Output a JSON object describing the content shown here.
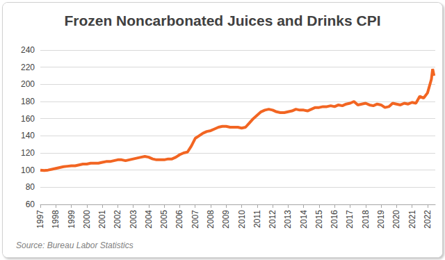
{
  "chart_data": {
    "type": "line",
    "title": "Frozen Noncarbonated Juices and Drinks CPI",
    "annotation": "Source: Bureau Labor Statistics",
    "color": "#f26522",
    "grid": true,
    "xlim": [
      1997,
      2022.5
    ],
    "xticks": [
      1997,
      1998,
      1999,
      2000,
      2001,
      2002,
      2003,
      2004,
      2005,
      2006,
      2007,
      2008,
      2009,
      2010,
      2011,
      2012,
      2013,
      2014,
      2015,
      2016,
      2017,
      2018,
      2019,
      2020,
      2021,
      2022
    ],
    "ylim": [
      60,
      240
    ],
    "yticks": [
      60,
      80,
      100,
      120,
      140,
      160,
      180,
      200,
      220,
      240
    ],
    "x": [
      1997,
      1997.25,
      1997.5,
      1997.75,
      1998,
      1998.25,
      1998.5,
      1998.75,
      1999,
      1999.25,
      1999.5,
      1999.75,
      2000,
      2000.25,
      2000.5,
      2000.75,
      2001,
      2001.25,
      2001.5,
      2001.75,
      2002,
      2002.25,
      2002.5,
      2002.75,
      2003,
      2003.25,
      2003.5,
      2003.75,
      2004,
      2004.25,
      2004.5,
      2004.75,
      2005,
      2005.25,
      2005.5,
      2005.75,
      2006,
      2006.25,
      2006.5,
      2006.75,
      2007,
      2007.25,
      2007.5,
      2007.75,
      2008,
      2008.25,
      2008.5,
      2008.75,
      2009,
      2009.25,
      2009.5,
      2009.75,
      2010,
      2010.25,
      2010.5,
      2010.75,
      2011,
      2011.25,
      2011.5,
      2011.75,
      2012,
      2012.25,
      2012.5,
      2012.75,
      2013,
      2013.25,
      2013.5,
      2013.75,
      2014,
      2014.25,
      2014.5,
      2014.75,
      2015,
      2015.25,
      2015.5,
      2015.75,
      2016,
      2016.25,
      2016.5,
      2016.75,
      2017,
      2017.25,
      2017.5,
      2017.75,
      2018,
      2018.25,
      2018.5,
      2018.75,
      2019,
      2019.25,
      2019.5,
      2019.75,
      2020,
      2020.25,
      2020.5,
      2020.75,
      2021,
      2021.25,
      2021.5,
      2021.75,
      2022,
      2022.25,
      2022.33,
      2022.42
    ],
    "values": [
      100,
      99.5,
      100,
      101,
      102,
      103,
      104,
      104.5,
      105,
      105,
      106,
      107,
      107,
      108,
      108,
      108,
      109,
      110,
      110,
      111,
      112,
      112,
      111,
      112,
      113,
      114,
      115,
      116,
      115,
      113,
      112,
      112,
      112,
      113,
      113,
      115,
      118,
      120,
      121,
      128,
      137,
      140,
      143,
      145,
      146,
      148,
      150,
      151,
      151,
      150,
      150,
      150,
      149,
      150,
      155,
      160,
      164,
      168,
      170,
      171,
      170,
      168,
      167,
      167,
      168,
      169,
      171,
      170,
      170,
      169,
      171,
      173,
      173,
      174,
      174,
      175,
      174,
      176,
      175,
      177,
      178,
      180,
      176,
      177,
      178,
      176,
      175,
      177,
      176,
      173,
      174,
      178,
      177,
      176,
      178,
      177,
      179,
      178,
      186,
      184,
      190,
      206,
      218,
      210
    ]
  }
}
